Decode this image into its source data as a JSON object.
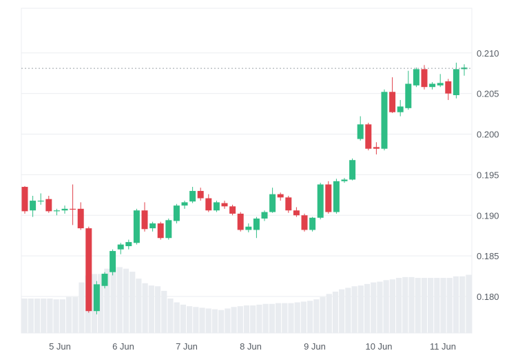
{
  "chart_data": {
    "type": "candlestick",
    "x_tick_labels": [
      "5 Jun",
      "6 Jun",
      "7 Jun",
      "8 Jun",
      "9 Jun",
      "10 Jun",
      "11 Jun"
    ],
    "y_tick_labels": [
      "0.180",
      "0.185",
      "0.190",
      "0.195",
      "0.200",
      "0.205",
      "0.210"
    ],
    "y_ticks": [
      0.18,
      0.185,
      0.19,
      0.195,
      0.2,
      0.205,
      0.21
    ],
    "ylim": [
      0.1755,
      0.2155
    ],
    "current_price_line": 0.2081,
    "grid": true,
    "colors": {
      "up": "#2ebd85",
      "down": "#e0404a",
      "volume": "#e9ecf0",
      "grid": "#ebedf0",
      "axis_text": "#555b63"
    },
    "candles": [
      [
        0.1935,
        0.1936,
        0.1902,
        0.1905
      ],
      [
        0.1906,
        0.1924,
        0.1898,
        0.1918
      ],
      [
        0.1917,
        0.1927,
        0.1913,
        0.1918
      ],
      [
        0.192,
        0.1924,
        0.1903,
        0.1905
      ],
      [
        0.1905,
        0.1908,
        0.19,
        0.1906
      ],
      [
        0.1906,
        0.1912,
        0.1902,
        0.1908
      ],
      [
        0.1908,
        0.1938,
        0.1888,
        0.1907
      ],
      [
        0.1908,
        0.1916,
        0.1882,
        0.1884
      ],
      [
        0.1884,
        0.1886,
        0.178,
        0.1782
      ],
      [
        0.1782,
        0.1819,
        0.1778,
        0.1815
      ],
      [
        0.1813,
        0.183,
        0.181,
        0.1828
      ],
      [
        0.183,
        0.1858,
        0.1826,
        0.1856
      ],
      [
        0.1858,
        0.1866,
        0.1852,
        0.1864
      ],
      [
        0.1862,
        0.187,
        0.1858,
        0.1867
      ],
      [
        0.1866,
        0.1908,
        0.1864,
        0.1906
      ],
      [
        0.1906,
        0.1916,
        0.188,
        0.1883
      ],
      [
        0.1884,
        0.1892,
        0.188,
        0.189
      ],
      [
        0.189,
        0.1892,
        0.187,
        0.1872
      ],
      [
        0.1872,
        0.1896,
        0.187,
        0.1894
      ],
      [
        0.1893,
        0.1914,
        0.189,
        0.1912
      ],
      [
        0.1912,
        0.1918,
        0.1908,
        0.1916
      ],
      [
        0.1917,
        0.1935,
        0.1915,
        0.193
      ],
      [
        0.193,
        0.1934,
        0.1918,
        0.1921
      ],
      [
        0.1921,
        0.1926,
        0.1904,
        0.1906
      ],
      [
        0.1906,
        0.1918,
        0.1904,
        0.1916
      ],
      [
        0.1915,
        0.1918,
        0.1908,
        0.1911
      ],
      [
        0.1911,
        0.1913,
        0.19,
        0.1902
      ],
      [
        0.1902,
        0.1904,
        0.188,
        0.1882
      ],
      [
        0.1882,
        0.189,
        0.1879,
        0.1886
      ],
      [
        0.1882,
        0.1898,
        0.1872,
        0.1896
      ],
      [
        0.1896,
        0.1906,
        0.1893,
        0.1904
      ],
      [
        0.1904,
        0.1934,
        0.1903,
        0.1926
      ],
      [
        0.1926,
        0.1928,
        0.1918,
        0.1922
      ],
      [
        0.1922,
        0.1924,
        0.1903,
        0.1906
      ],
      [
        0.1906,
        0.191,
        0.1898,
        0.19
      ],
      [
        0.19,
        0.1902,
        0.188,
        0.1882
      ],
      [
        0.1882,
        0.1898,
        0.188,
        0.1897
      ],
      [
        0.1897,
        0.194,
        0.1895,
        0.1938
      ],
      [
        0.1938,
        0.1942,
        0.1902,
        0.1904
      ],
      [
        0.1904,
        0.1945,
        0.1902,
        0.1942
      ],
      [
        0.1942,
        0.1946,
        0.194,
        0.1944
      ],
      [
        0.1944,
        0.197,
        0.1943,
        0.1968
      ],
      [
        0.1994,
        0.2022,
        0.1992,
        0.2012
      ],
      [
        0.2012,
        0.2014,
        0.198,
        0.1982
      ],
      [
        0.1984,
        0.199,
        0.1975,
        0.1982
      ],
      [
        0.1982,
        0.2055,
        0.198,
        0.2052
      ],
      [
        0.2052,
        0.207,
        0.2026,
        0.2027
      ],
      [
        0.2027,
        0.2042,
        0.2022,
        0.2034
      ],
      [
        0.2032,
        0.2078,
        0.203,
        0.2062
      ],
      [
        0.206,
        0.2082,
        0.2058,
        0.208
      ],
      [
        0.208,
        0.2085,
        0.2055,
        0.2058
      ],
      [
        0.2058,
        0.2064,
        0.2055,
        0.2062
      ],
      [
        0.206,
        0.2074,
        0.2058,
        0.2063
      ],
      [
        0.2065,
        0.2068,
        0.2042,
        0.205
      ],
      [
        0.2048,
        0.2088,
        0.2044,
        0.208
      ],
      [
        0.208,
        0.2086,
        0.2072,
        0.2082
      ]
    ],
    "volume": [
      45,
      45,
      45,
      45,
      45,
      44,
      44,
      47,
      47,
      66,
      75,
      77,
      77,
      84,
      86,
      86,
      84,
      80,
      71,
      65,
      62,
      61,
      55,
      45,
      40,
      37,
      35,
      34,
      33,
      32,
      31,
      30,
      32,
      34,
      35,
      36,
      36,
      37,
      38,
      38,
      39,
      39,
      39,
      40,
      41,
      42,
      44,
      47,
      51,
      54,
      57,
      59,
      61,
      62,
      64,
      66,
      67,
      69,
      70,
      72,
      73,
      73,
      72,
      72,
      72,
      72,
      72,
      72,
      74,
      74,
      76
    ]
  }
}
